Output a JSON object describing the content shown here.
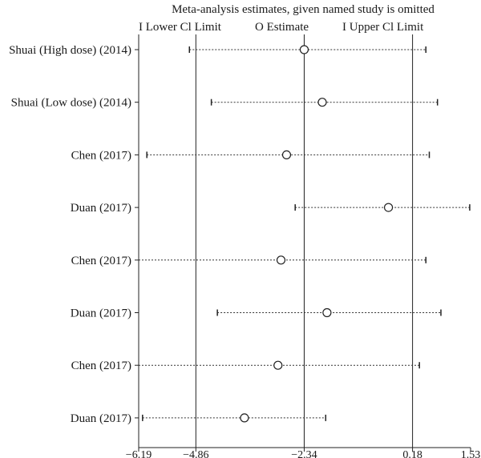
{
  "chart_data": {
    "type": "forest",
    "title": "Meta-analysis estimates, given named study is omitted",
    "legend": {
      "lower": "I Lower Cl Limit",
      "estimate": "O Estimate",
      "upper": "I Upper Cl Limit"
    },
    "xlim": [
      -6.19,
      1.53
    ],
    "xticks": [
      "-6.19",
      "-4.86",
      "-2.34",
      "0.18",
      "1.53"
    ],
    "reference_lines": [
      -4.86,
      -2.34,
      0.18
    ],
    "studies": [
      {
        "label": "Shuai (High dose) (2014)",
        "lower": -5.01,
        "estimate": -2.34,
        "upper": 0.49
      },
      {
        "label": "Shuai (Low dose) (2014)",
        "lower": -4.5,
        "estimate": -1.92,
        "upper": 0.76
      },
      {
        "label": "Chen (2017)",
        "lower": -6.0,
        "estimate": -2.75,
        "upper": 0.57
      },
      {
        "label": "Duan (2017)",
        "lower": -2.55,
        "estimate": -0.38,
        "upper": 1.51
      },
      {
        "label": "Chen (2017)",
        "lower": -6.19,
        "estimate": -2.88,
        "upper": 0.49
      },
      {
        "label": "Duan (2017)",
        "lower": -4.36,
        "estimate": -1.81,
        "upper": 0.84
      },
      {
        "label": "Chen (2017)",
        "lower": -6.19,
        "estimate": -2.95,
        "upper": 0.34
      },
      {
        "label": "Duan (2017)",
        "lower": -6.1,
        "estimate": -3.73,
        "upper": -1.84
      }
    ]
  }
}
